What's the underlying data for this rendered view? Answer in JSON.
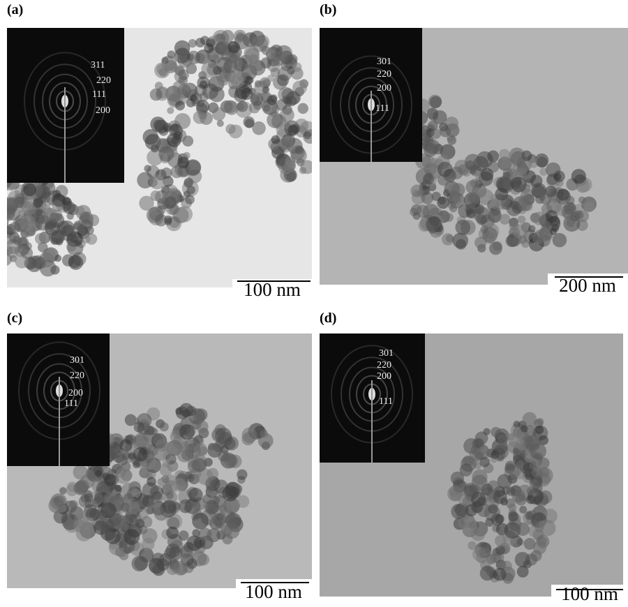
{
  "panels": [
    {
      "label": "(a)",
      "scale_bar": "100 nm",
      "indices": [
        "311",
        "220",
        "111",
        "200"
      ]
    },
    {
      "label": "(b)",
      "scale_bar": "200 nm",
      "indices": [
        "301",
        "220",
        "200",
        "111"
      ]
    },
    {
      "label": "(c)",
      "scale_bar": "100 nm",
      "indices": [
        "301",
        "220",
        "200",
        "111"
      ]
    },
    {
      "label": "(d)",
      "scale_bar": "100 nm",
      "indices": [
        "301",
        "220",
        "200",
        "111"
      ]
    }
  ]
}
